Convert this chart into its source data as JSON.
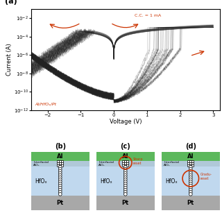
{
  "panel_a_label": "(a)",
  "xlabel": "Voltage (V)",
  "ylabel": "Current (A)",
  "cc_label": "C.C. = 1 mA",
  "device_label": "Al/HfOₓ/Pt",
  "curve_color": "#222222",
  "arrow_color": "#cc3300",
  "cc_color": "#cc3300",
  "device_label_color": "#cc3300",
  "al_color": "#5cb85c",
  "alox_color": "#b0c8d8",
  "hfox_color": "#c0d8ee",
  "pt_color": "#a8a8a8",
  "sharp_reset_color": "#cc3300",
  "grad_reset_color": "#cc3300",
  "n_cycles": 35
}
